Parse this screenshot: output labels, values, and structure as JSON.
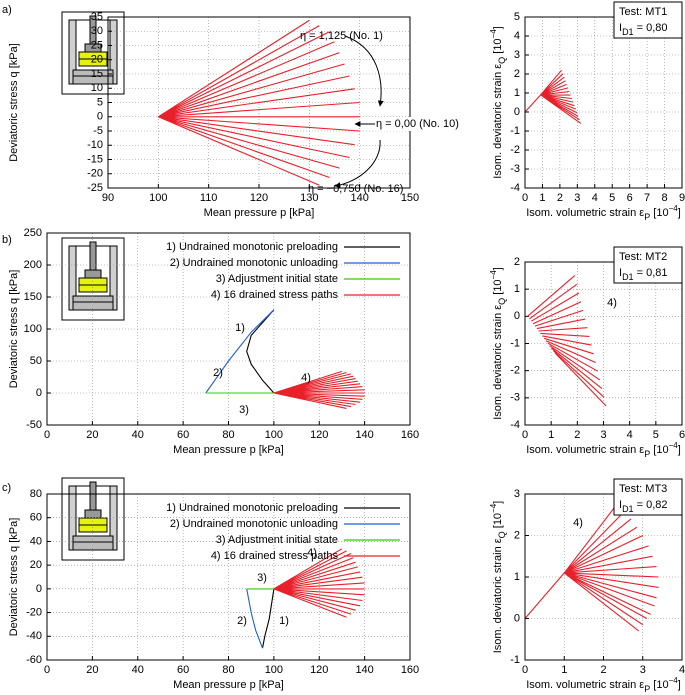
{
  "chart_data": [
    {
      "type": "line",
      "panel_label": "a)",
      "x_label": "Mean pressure p [kPa]",
      "y_label": "Deviatoric stress q [kPa]",
      "xlim": [
        90,
        150
      ],
      "ylim": [
        -25,
        35
      ],
      "xticks": [
        90,
        100,
        110,
        120,
        130,
        140,
        150
      ],
      "yticks": [
        -25,
        -20,
        -15,
        -10,
        -5,
        0,
        5,
        10,
        15,
        20,
        25,
        30,
        35
      ],
      "grid": true,
      "annotations": [
        "η = 1,125 (No. 1)",
        "η = 0,00 (No. 10)",
        "η = −0,750 (No. 16)"
      ],
      "series": [
        {
          "color": "#e8202a",
          "x": [
            100,
            130,
            130,
            100,
            132,
            132,
            100,
            134,
            134,
            100,
            135,
            135,
            100,
            136,
            136,
            100,
            137,
            137,
            100,
            138,
            138,
            100,
            139,
            139,
            100,
            140,
            140,
            100,
            140,
            140,
            100,
            140,
            140,
            100,
            139,
            139,
            100,
            138,
            138,
            100,
            136,
            136,
            100,
            134,
            134,
            100,
            132
          ],
          "values": [
            0,
            33.8,
            null,
            0,
            32,
            null,
            0,
            29.8,
            null,
            0,
            26.3,
            null,
            0,
            22.5,
            null,
            0,
            18.5,
            null,
            0,
            14.3,
            null,
            0,
            9.8,
            null,
            0,
            5,
            null,
            0,
            0,
            null,
            0,
            -5,
            null,
            0,
            -9.8,
            null,
            0,
            -14.3,
            null,
            0,
            -18,
            null,
            0,
            -21.3,
            null,
            0,
            -24
          ]
        }
      ]
    },
    {
      "type": "line",
      "x_label": [
        "Isom. volumetric strain ε",
        "P",
        " [10",
        "−4",
        "]"
      ],
      "y_label": [
        "Isom. deviatoric strain ε",
        "Q",
        " [10",
        "−4",
        "]"
      ],
      "xlim": [
        0,
        9
      ],
      "ylim": [
        -4,
        5
      ],
      "xticks": [
        0,
        1,
        2,
        3,
        4,
        5,
        6,
        7,
        8,
        9
      ],
      "yticks": [
        -4,
        -3,
        -2,
        -1,
        0,
        1,
        2,
        3,
        4,
        5
      ],
      "grid": true,
      "test_label": "Test: MT1",
      "density_label": [
        "I",
        "D1",
        " = 0,80"
      ],
      "series": [
        {
          "color": "#e8202a",
          "x": [
            0,
            0.9
          ],
          "values": [
            0,
            0.9
          ]
        },
        {
          "color": "#e8202a",
          "x": [
            0.9,
            2.1,
            2.1,
            0.9,
            2.17,
            2.17,
            0.9,
            2.25,
            2.25,
            0.9,
            2.32,
            2.32,
            0.9,
            2.39,
            2.39,
            0.9,
            2.47,
            2.47,
            0.9,
            2.54,
            2.54,
            0.9,
            2.61,
            2.61,
            0.9,
            2.69,
            2.69,
            0.9,
            2.76,
            2.76,
            0.9,
            2.83,
            2.83,
            0.9,
            2.91,
            2.91,
            0.9,
            2.98,
            2.98,
            0.9,
            3.05,
            3.05,
            0.9,
            3.13,
            3.13,
            0.9,
            3.2
          ],
          "values": [
            0.9,
            2.2,
            null,
            0.9,
            2.01,
            null,
            0.9,
            1.83,
            null,
            0.9,
            1.64,
            null,
            0.9,
            1.45,
            null,
            0.9,
            1.27,
            null,
            0.9,
            1.08,
            null,
            0.9,
            0.89,
            null,
            0.9,
            0.71,
            null,
            0.9,
            0.52,
            null,
            0.9,
            0.33,
            null,
            0.9,
            0.15,
            null,
            0.9,
            -0.04,
            null,
            0.9,
            -0.23,
            null,
            0.9,
            -0.41,
            null,
            0.9,
            -0.6
          ]
        }
      ]
    },
    {
      "type": "line",
      "panel_label": "b)",
      "x_label": "Mean pressure p [kPa]",
      "y_label": "Deviatoric stress q [kPa]",
      "xlim": [
        0,
        160
      ],
      "ylim": [
        -50,
        250
      ],
      "xticks": [
        0,
        20,
        40,
        60,
        80,
        100,
        120,
        140,
        160
      ],
      "yticks": [
        -50,
        0,
        50,
        100,
        150,
        200,
        250
      ],
      "grid": true,
      "legend": "upper right",
      "annotations": [
        "1)",
        "2)",
        "3)",
        "4)"
      ],
      "series": [
        {
          "name": "1) Undrained monotonic preloading",
          "color": "#000000",
          "x": [
            100,
            95,
            90,
            88,
            90,
            95,
            100
          ],
          "values": [
            0,
            20,
            45,
            65,
            90,
            110,
            130
          ]
        },
        {
          "name": "2) Undrained monotonic unloading",
          "color": "#1f5fd6",
          "x": [
            100,
            90,
            80,
            70
          ],
          "values": [
            130,
            95,
            50,
            0
          ]
        },
        {
          "name": "3) Adjustment initial state",
          "color": "#33cc00",
          "x": [
            70,
            100
          ],
          "values": [
            0,
            0
          ]
        },
        {
          "name": "4) 16 drained stress paths",
          "color": "#e8202a",
          "x": [
            100,
            130,
            130,
            100,
            132,
            132,
            100,
            134,
            134,
            100,
            135,
            135,
            100,
            136,
            136,
            100,
            137,
            137,
            100,
            138,
            138,
            100,
            139,
            139,
            100,
            140,
            140,
            100,
            140,
            140,
            100,
            140,
            140,
            100,
            139,
            139,
            100,
            138,
            138,
            100,
            136,
            136,
            100,
            134,
            134,
            100,
            132
          ],
          "values": [
            0,
            33.8,
            null,
            0,
            32,
            null,
            0,
            29.8,
            null,
            0,
            26.3,
            null,
            0,
            22.5,
            null,
            0,
            18.5,
            null,
            0,
            14.3,
            null,
            0,
            9.8,
            null,
            0,
            5,
            null,
            0,
            0,
            null,
            0,
            -5,
            null,
            0,
            -9.8,
            null,
            0,
            -14.3,
            null,
            0,
            -18,
            null,
            0,
            -21.3,
            null,
            0,
            -24
          ]
        }
      ]
    },
    {
      "type": "line",
      "x_label": [
        "Isom. volumetric strain ε",
        "P",
        " [10",
        "−4",
        "]"
      ],
      "y_label": [
        "Isom. deviatoric strain ε",
        "Q",
        " [10",
        "−4",
        "]"
      ],
      "xlim": [
        0,
        6
      ],
      "ylim": [
        -4,
        2
      ],
      "xticks": [
        0,
        1,
        2,
        3,
        4,
        5,
        6
      ],
      "yticks": [
        -4,
        -3,
        -2,
        -1,
        0,
        1,
        2
      ],
      "grid": true,
      "test_label": "Test: MT2",
      "density_label": [
        "I",
        "D1",
        " = 0,81"
      ],
      "annotations": [
        "4)"
      ],
      "series": [
        {
          "color": "#e8202a",
          "x": [
            0.1,
            1.9,
            1.9,
            0.17,
            1.98,
            1.98,
            0.24,
            2.06,
            2.06,
            0.31,
            2.14,
            2.14,
            0.38,
            2.22,
            2.22,
            0.45,
            2.3,
            2.3,
            0.52,
            2.38,
            2.38,
            0.59,
            2.46,
            2.46,
            0.66,
            2.54,
            2.54,
            0.73,
            2.62,
            2.62,
            0.8,
            2.7,
            2.7,
            0.87,
            2.78,
            2.78,
            0.94,
            2.86,
            2.86,
            1.01,
            2.94,
            2.94,
            1.08,
            3.02,
            3.02,
            1.15,
            3.1
          ],
          "values": [
            0,
            1.5,
            null,
            -0.09,
            1.18,
            null,
            -0.18,
            0.86,
            null,
            -0.27,
            0.54,
            null,
            -0.36,
            0.22,
            null,
            -0.45,
            -0.1,
            null,
            -0.54,
            -0.42,
            null,
            -0.63,
            -0.74,
            null,
            -0.72,
            -1.06,
            null,
            -0.81,
            -1.38,
            null,
            -0.9,
            -1.7,
            null,
            -0.99,
            -2.02,
            null,
            -1.08,
            -2.34,
            null,
            -1.17,
            -2.66,
            null,
            -1.26,
            -2.98,
            null,
            -1.35,
            -3.3
          ]
        }
      ]
    },
    {
      "type": "line",
      "panel_label": "c)",
      "x_label": "Mean pressure p [kPa]",
      "y_label": "Deviatoric stress q [kPa]",
      "xlim": [
        0,
        160
      ],
      "ylim": [
        -60,
        80
      ],
      "xticks": [
        0,
        20,
        40,
        60,
        80,
        100,
        120,
        140,
        160
      ],
      "yticks": [
        -60,
        -40,
        -20,
        0,
        20,
        40,
        60,
        80
      ],
      "grid": true,
      "legend": "upper right",
      "annotations": [
        "1)",
        "2)",
        "3)",
        "4)"
      ],
      "series": [
        {
          "name": "1) Undrained monotonic preloading",
          "color": "#000000",
          "x": [
            100,
            98,
            96,
            95
          ],
          "values": [
            0,
            -25,
            -40,
            -50
          ]
        },
        {
          "name": "2) Undrained monotonic unloading",
          "color": "#1f5fd6",
          "x": [
            95,
            92,
            90,
            88
          ],
          "values": [
            -50,
            -35,
            -20,
            0
          ]
        },
        {
          "name": "3) Adjustment initial state",
          "color": "#33cc00",
          "x": [
            88,
            100
          ],
          "values": [
            0,
            0
          ]
        },
        {
          "name": "4) 16 drained stress paths",
          "color": "#e8202a",
          "x": [
            100,
            130,
            130,
            100,
            132,
            132,
            100,
            134,
            134,
            100,
            135,
            135,
            100,
            136,
            136,
            100,
            137,
            137,
            100,
            138,
            138,
            100,
            139,
            139,
            100,
            140,
            140,
            100,
            140,
            140,
            100,
            140,
            140,
            100,
            139,
            139,
            100,
            138,
            138,
            100,
            136,
            136,
            100,
            134,
            134,
            100,
            132
          ],
          "values": [
            0,
            33.8,
            null,
            0,
            32,
            null,
            0,
            29.8,
            null,
            0,
            26.3,
            null,
            0,
            22.5,
            null,
            0,
            18.5,
            null,
            0,
            14.3,
            null,
            0,
            9.8,
            null,
            0,
            5,
            null,
            0,
            0,
            null,
            0,
            -5,
            null,
            0,
            -9.8,
            null,
            0,
            -14.3,
            null,
            0,
            -18,
            null,
            0,
            -21.3,
            null,
            0,
            -24
          ]
        }
      ]
    },
    {
      "type": "line",
      "x_label": [
        "Isom. volumetric strain ε",
        "P",
        " [10",
        "−4",
        "]"
      ],
      "y_label": [
        "Isom. deviatoric strain ε",
        "Q",
        " [10",
        "−4",
        "]"
      ],
      "xlim": [
        0,
        4
      ],
      "ylim": [
        -1,
        3
      ],
      "xticks": [
        0,
        1,
        2,
        3,
        4
      ],
      "yticks": [
        -1,
        0,
        1,
        2,
        3
      ],
      "grid": true,
      "test_label": "Test: MT3",
      "density_label": [
        "I",
        "D1",
        " = 0,82"
      ],
      "annotations": [
        "4)"
      ],
      "series": [
        {
          "color": "#e8202a",
          "x": [
            0,
            1
          ],
          "values": [
            0,
            1.1
          ]
        },
        {
          "color": "#e8202a",
          "x": [
            1,
            2.3,
            2.3,
            1,
            2.5,
            2.5,
            1,
            2.7,
            2.7,
            1,
            2.85,
            2.85,
            1,
            3,
            3,
            1,
            3.15,
            3.15,
            1,
            3.25,
            3.25,
            1,
            3.35,
            3.35,
            1,
            3.4,
            3.4,
            1,
            3.4,
            3.4,
            1,
            3.35,
            3.35,
            1,
            3.3,
            3.3,
            1,
            3.2,
            3.2,
            1,
            3.1,
            3.1,
            1,
            3,
            3,
            1,
            2.9
          ],
          "values": [
            1.1,
            2.7,
            null,
            1.1,
            2.55,
            null,
            1.1,
            2.4,
            null,
            1.1,
            2.2,
            null,
            1.1,
            2,
            null,
            1.1,
            1.75,
            null,
            1.1,
            1.5,
            null,
            1.1,
            1.25,
            null,
            1.1,
            1,
            null,
            1.1,
            0.75,
            null,
            1.1,
            0.5,
            null,
            1.1,
            0.3,
            null,
            1.1,
            0.1,
            null,
            1.1,
            0,
            null,
            1.1,
            -0.15,
            null,
            1.1,
            -0.3
          ]
        }
      ]
    }
  ]
}
